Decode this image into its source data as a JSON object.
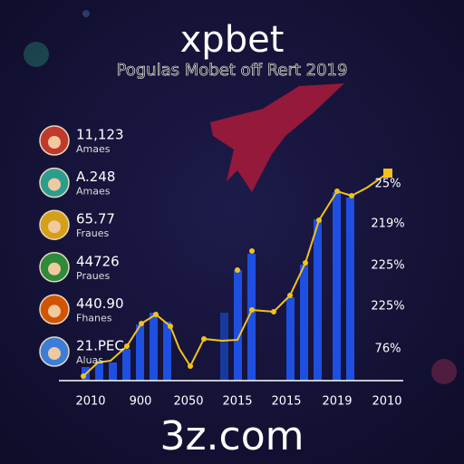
{
  "header": {
    "title": "xpbet",
    "subtitle": "Pogulas Mobet off Rert 2019"
  },
  "list": [
    {
      "value": "11,123",
      "label": "Amaes"
    },
    {
      "value": "A.248",
      "label": "Amaes"
    },
    {
      "value": "65.77",
      "label": "Fraues"
    },
    {
      "value": "44726",
      "label": "Praues"
    },
    {
      "value": "440.90",
      "label": "Fhanes"
    },
    {
      "value": "21.PEC",
      "label": "Aluas"
    }
  ],
  "x_labels": [
    "2010",
    "900",
    "2050",
    "2015",
    "2015",
    "2019",
    "2010"
  ],
  "right_labels": [
    "25%",
    "219%",
    "225%",
    "225%",
    "76%"
  ],
  "footer": "3z.com"
}
